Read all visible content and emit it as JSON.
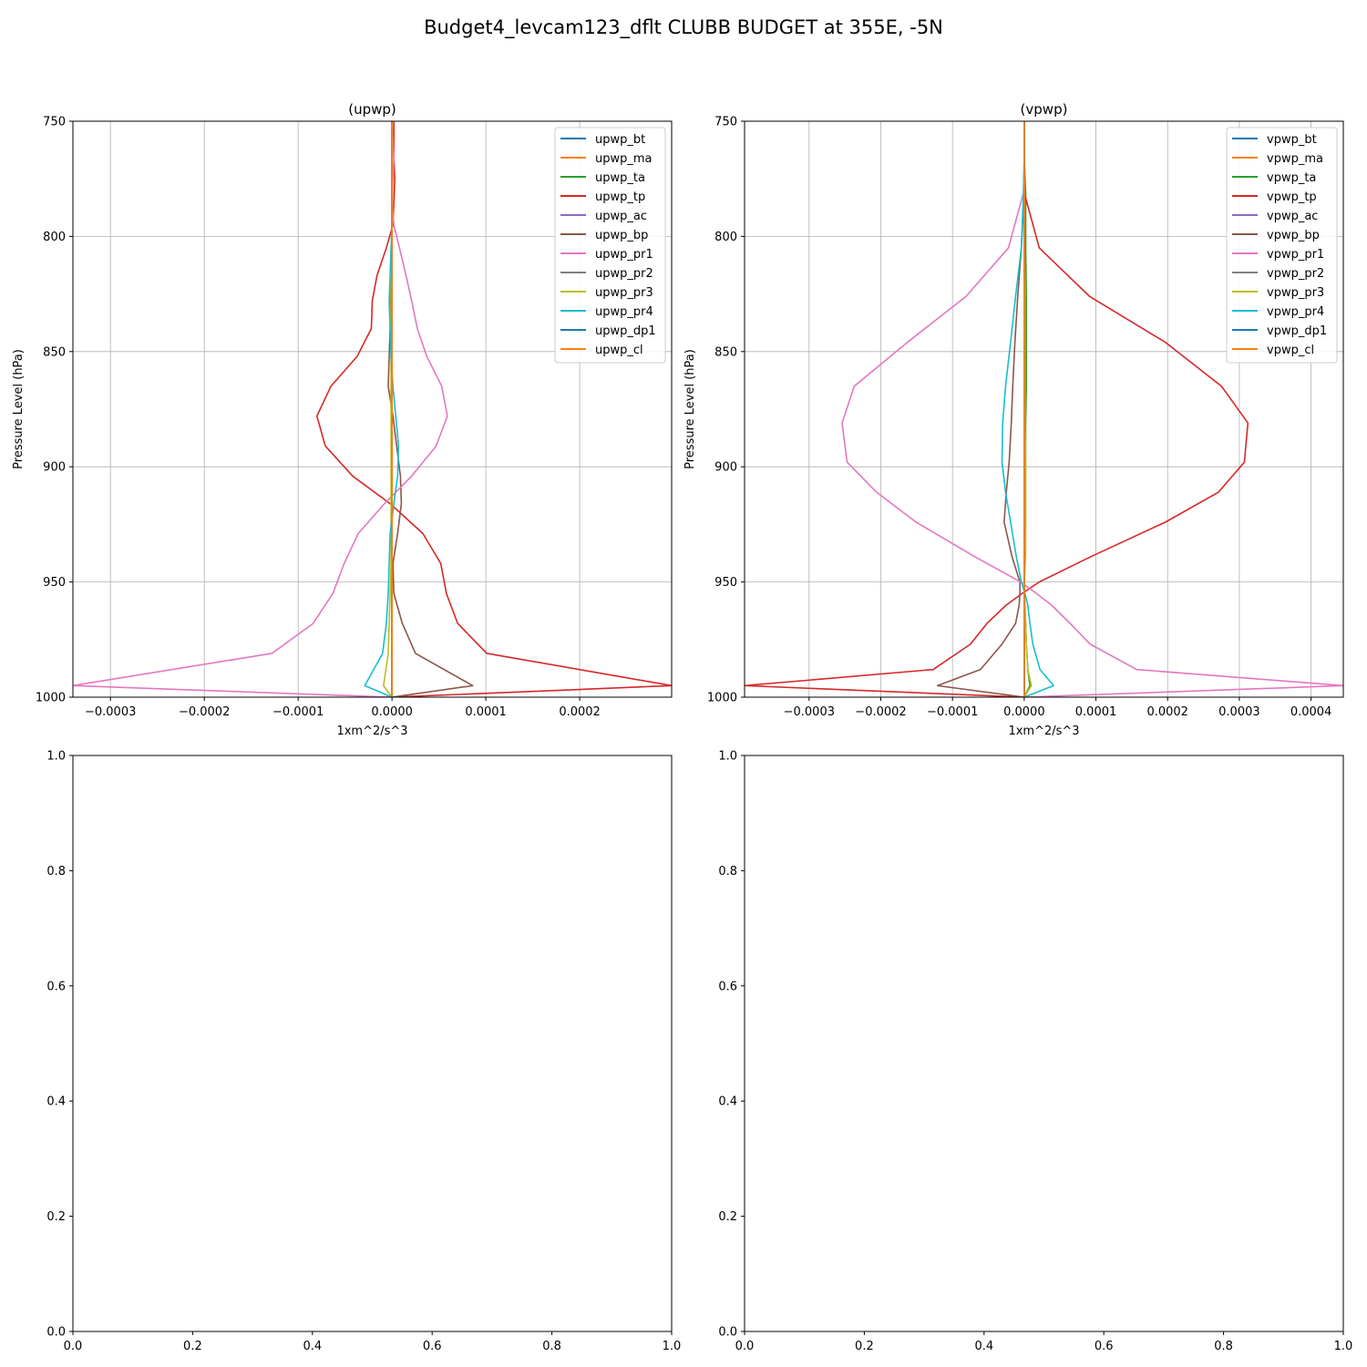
{
  "figure": {
    "suptitle": "Budget4_levcam123_dflt CLUBB BUDGET at 355E, -5N"
  },
  "chart_data": [
    {
      "type": "line",
      "title": "(upwp)",
      "xlabel": "1xm^2/s^3",
      "ylabel": "Pressure Level (hPa)",
      "xlim": [
        -0.00034,
        0.000298
      ],
      "ylim": [
        1000,
        750
      ],
      "xticks": [
        -0.0003,
        -0.0002,
        -0.0001,
        0.0,
        0.0001,
        0.0002
      ],
      "xtick_labels": [
        "−0.0003",
        "−0.0002",
        "−0.0001",
        "0.0000",
        "0.0001",
        "0.0002"
      ],
      "yticks": [
        750,
        800,
        850,
        900,
        950,
        1000
      ],
      "ytick_labels": [
        "750",
        "800",
        "850",
        "900",
        "950",
        "1000"
      ],
      "grid": true,
      "legend_position": "top-right",
      "y": [
        750,
        758,
        766,
        775,
        785,
        795,
        805,
        817,
        828,
        840,
        852,
        865,
        878,
        891,
        904,
        916,
        929,
        942,
        955,
        968,
        981,
        995,
        1000
      ],
      "series": [
        {
          "name": "upwp_bt",
          "color": "#1f77b4",
          "values": [
            0,
            0,
            0,
            0,
            0,
            0,
            0,
            0,
            0,
            0,
            0,
            0,
            0,
            0,
            0,
            0,
            0,
            0,
            0,
            0,
            0,
            0,
            0
          ]
        },
        {
          "name": "upwp_ma",
          "color": "#ff7f0e",
          "values": [
            0,
            0,
            0,
            0,
            0,
            0,
            0,
            0,
            0,
            0,
            0,
            0,
            0,
            0,
            0,
            0,
            0,
            0,
            0,
            0,
            0,
            0,
            0
          ]
        },
        {
          "name": "upwp_ta",
          "color": "#2ca02c",
          "values": [
            0,
            0,
            0,
            0,
            0,
            0,
            0,
            0,
            0,
            0,
            0,
            0,
            0,
            0,
            0,
            0,
            0,
            0,
            0,
            0,
            0,
            0,
            0
          ]
        },
        {
          "name": "upwp_tp",
          "color": "#d62728",
          "values": [
            2e-06,
            2e-06,
            2e-06,
            3e-06,
            2e-06,
            1e-06,
            -6e-06,
            -1.6e-05,
            -2.1e-05,
            -2.2e-05,
            -3.7e-05,
            -6.5e-05,
            -8e-05,
            -7.1e-05,
            -4.2e-05,
            -2e-06,
            3.3e-05,
            5.2e-05,
            5.8e-05,
            7e-05,
            0.000101,
            0.000298,
            0.0
          ]
        },
        {
          "name": "upwp_ac",
          "color": "#9467bd",
          "values": [
            0,
            0,
            0,
            0,
            0,
            0,
            0,
            0,
            0,
            0,
            0,
            0,
            0,
            0,
            0,
            0,
            0,
            0,
            0,
            0,
            0,
            0,
            0
          ]
        },
        {
          "name": "upwp_bp",
          "color": "#8c564b",
          "values": [
            0,
            0,
            0,
            0,
            0,
            0,
            0,
            -1e-06,
            -2e-06,
            -2e-06,
            -3e-06,
            -4e-06,
            1e-06,
            5e-06,
            9e-06,
            1e-05,
            6e-06,
            1e-06,
            2e-06,
            1.1e-05,
            2.5e-05,
            8.6e-05,
            0.0
          ]
        },
        {
          "name": "upwp_pr1",
          "color": "#e377c2",
          "values": [
            0.0,
            1e-06,
            2e-06,
            1e-06,
            0.0,
            2e-06,
            8e-06,
            1.5e-05,
            2.1e-05,
            2.7e-05,
            3.7e-05,
            5.3e-05,
            5.9e-05,
            4.7e-05,
            2.1e-05,
            -8e-06,
            -3.6e-05,
            -5.1e-05,
            -6.3e-05,
            -8.4e-05,
            -0.000128,
            -0.00034,
            -0.0
          ]
        },
        {
          "name": "upwp_pr2",
          "color": "#7f7f7f",
          "values": [
            0,
            0,
            0,
            0,
            0,
            0,
            0,
            0,
            0,
            0,
            0,
            0,
            0,
            0,
            0,
            0,
            0,
            0,
            0,
            0,
            0,
            0,
            0
          ]
        },
        {
          "name": "upwp_pr3",
          "color": "#bcbd22",
          "values": [
            0,
            0,
            0,
            0,
            0,
            0,
            0,
            -1e-06,
            -1e-06,
            -1e-06,
            -1e-06,
            -1e-06,
            -1e-06,
            -1e-06,
            -1e-06,
            -1e-06,
            -1e-06,
            -1e-06,
            -2e-06,
            -3e-06,
            -4e-06,
            -9e-06,
            0.0
          ]
        },
        {
          "name": "upwp_pr4",
          "color": "#17becf",
          "values": [
            0,
            0,
            0,
            0,
            0,
            0,
            -1e-06,
            -2e-06,
            -3e-06,
            -2e-06,
            -1e-06,
            1e-06,
            4e-06,
            7e-06,
            6e-06,
            2e-06,
            -2e-06,
            -3e-06,
            -4e-06,
            -6e-06,
            -1e-05,
            -2.9e-05,
            0.0
          ]
        },
        {
          "name": "upwp_dp1",
          "color": "#1f77b4",
          "values": [
            0,
            0,
            0,
            0,
            0,
            0,
            0,
            0,
            0,
            0,
            0,
            0,
            0,
            0,
            0,
            0,
            0,
            0,
            0,
            0,
            0,
            0,
            0
          ]
        },
        {
          "name": "upwp_cl",
          "color": "#ff7f0e",
          "values": [
            0,
            0,
            0,
            0,
            0,
            0,
            0,
            0,
            0,
            0,
            0,
            0,
            0,
            0,
            0,
            0,
            0,
            0,
            0,
            0,
            0,
            0,
            0
          ]
        }
      ]
    },
    {
      "type": "line",
      "title": "(vpwp)",
      "xlabel": "1xm^2/s^3",
      "ylabel": "Pressure Level (hPa)",
      "xlim": [
        -0.00039,
        0.000445
      ],
      "ylim": [
        1000,
        750
      ],
      "xticks": [
        -0.0003,
        -0.0002,
        -0.0001,
        0.0,
        0.0001,
        0.0002,
        0.0003,
        0.0004
      ],
      "xtick_labels": [
        "−0.0003",
        "−0.0002",
        "−0.0001",
        "0.0000",
        "0.0001",
        "0.0002",
        "0.0003",
        "0.0004"
      ],
      "yticks": [
        750,
        800,
        850,
        900,
        950,
        1000
      ],
      "ytick_labels": [
        "750",
        "800",
        "850",
        "900",
        "950",
        "1000"
      ],
      "grid": true,
      "legend_position": "top-right",
      "y": [
        750,
        766,
        781,
        805,
        826,
        846,
        865,
        881,
        898,
        911,
        924,
        939,
        950,
        955,
        960,
        968,
        977,
        988,
        995,
        1000
      ],
      "series": [
        {
          "name": "vpwp_bt",
          "color": "#1f77b4",
          "values": [
            0,
            0,
            0,
            0,
            0,
            0,
            0,
            0,
            0,
            0,
            0,
            0,
            0,
            0,
            0,
            0,
            0,
            0,
            0,
            0
          ]
        },
        {
          "name": "vpwp_ma",
          "color": "#ff7f0e",
          "values": [
            0,
            0,
            0,
            0,
            0,
            0,
            0,
            0,
            0,
            0,
            0,
            0,
            0,
            0,
            0,
            0,
            0,
            0,
            0,
            0
          ]
        },
        {
          "name": "vpwp_ta",
          "color": "#2ca02c",
          "values": [
            0.0,
            0.0,
            2e-06,
            2e-06,
            3e-06,
            3e-06,
            3e-06,
            2e-06,
            2e-06,
            2e-06,
            2e-06,
            1e-06,
            0.0,
            0.0,
            1e-06,
            2e-06,
            3e-06,
            5e-06,
            8e-06,
            0.0
          ]
        },
        {
          "name": "vpwp_tp",
          "color": "#d62728",
          "values": [
            0.0,
            0.0,
            0.0,
            2.1e-05,
            9.1e-05,
            0.000197,
            0.000275,
            0.000312,
            0.000307,
            0.000271,
            0.000197,
            9.3e-05,
            2.1e-05,
            -3e-06,
            -2.5e-05,
            -5.2e-05,
            -7.5e-05,
            -0.000127,
            -0.00039,
            0.0
          ]
        },
        {
          "name": "vpwp_ac",
          "color": "#9467bd",
          "values": [
            0,
            0,
            0,
            0,
            0,
            0,
            0,
            0,
            0,
            0,
            0,
            0,
            0,
            0,
            0,
            0,
            0,
            0,
            0,
            0
          ]
        },
        {
          "name": "vpwp_bp",
          "color": "#8c564b",
          "values": [
            0.0,
            0.0,
            0.0,
            -4e-06,
            -9e-06,
            -1.3e-05,
            -1.6e-05,
            -1.8e-05,
            -2.1e-05,
            -2.5e-05,
            -2.8e-05,
            -1.7e-05,
            -6e-06,
            -6e-06,
            -7e-06,
            -1.2e-05,
            -3.1e-05,
            -6.1e-05,
            -0.000121,
            0.0
          ]
        },
        {
          "name": "vpwp_pr1",
          "color": "#e377c2",
          "values": [
            0.0,
            0.0,
            -1e-06,
            -2.2e-05,
            -8.1e-05,
            -0.000163,
            -0.000237,
            -0.000254,
            -0.000247,
            -0.000206,
            -0.000151,
            -6.9e-05,
            -5e-06,
            1.7e-05,
            3.8e-05,
            6.4e-05,
            9.2e-05,
            0.000157,
            0.000445,
            0.0
          ]
        },
        {
          "name": "vpwp_pr2",
          "color": "#7f7f7f",
          "values": [
            0,
            0,
            0,
            0,
            0,
            0,
            0,
            0,
            0,
            0,
            0,
            0,
            0,
            0,
            0,
            0,
            0,
            0,
            0,
            0
          ]
        },
        {
          "name": "vpwp_pr3",
          "color": "#bcbd22",
          "values": [
            0.0,
            0.0,
            0.0,
            0.0,
            1e-06,
            1e-06,
            1e-06,
            1e-06,
            2e-06,
            2e-06,
            2e-06,
            2e-06,
            0.0,
            0.0,
            1e-06,
            2e-06,
            3e-06,
            5e-06,
            1e-05,
            0.0
          ]
        },
        {
          "name": "vpwp_pr4",
          "color": "#17becf",
          "values": [
            0.0,
            0.0,
            -1e-06,
            -4e-06,
            -1.2e-05,
            -1.9e-05,
            -2.6e-05,
            -3e-05,
            -3.1e-05,
            -2.6e-05,
            -1.9e-05,
            -1.1e-05,
            -4e-06,
            1e-06,
            5e-06,
            8e-06,
            1.2e-05,
            2.2e-05,
            4.1e-05,
            0.0
          ]
        },
        {
          "name": "vpwp_dp1",
          "color": "#1f77b4",
          "values": [
            0,
            0,
            0,
            0,
            0,
            0,
            0,
            0,
            0,
            0,
            0,
            0,
            0,
            0,
            0,
            0,
            0,
            0,
            0,
            0
          ]
        },
        {
          "name": "vpwp_cl",
          "color": "#ff7f0e",
          "values": [
            0,
            0,
            0,
            0,
            0,
            0,
            0,
            0,
            0,
            0,
            0,
            0,
            0,
            0,
            0,
            0,
            0,
            0,
            0,
            0
          ]
        }
      ]
    },
    {
      "type": "line",
      "xlim": [
        0.0,
        1.0
      ],
      "ylim": [
        0.0,
        1.0
      ],
      "xticks": [
        0.0,
        0.2,
        0.4,
        0.6,
        0.8,
        1.0
      ],
      "xtick_labels": [
        "0.0",
        "0.2",
        "0.4",
        "0.6",
        "0.8",
        "1.0"
      ],
      "yticks": [
        0.0,
        0.2,
        0.4,
        0.6,
        0.8,
        1.0
      ],
      "ytick_labels": [
        "0.0",
        "0.2",
        "0.4",
        "0.6",
        "0.8",
        "1.0"
      ],
      "grid": false,
      "series": []
    },
    {
      "type": "line",
      "xlim": [
        0.0,
        1.0
      ],
      "ylim": [
        0.0,
        1.0
      ],
      "xticks": [
        0.0,
        0.2,
        0.4,
        0.6,
        0.8,
        1.0
      ],
      "xtick_labels": [
        "0.0",
        "0.2",
        "0.4",
        "0.6",
        "0.8",
        "1.0"
      ],
      "yticks": [
        0.0,
        0.2,
        0.4,
        0.6,
        0.8,
        1.0
      ],
      "ytick_labels": [
        "0.0",
        "0.2",
        "0.4",
        "0.6",
        "0.8",
        "1.0"
      ],
      "grid": false,
      "series": []
    }
  ]
}
